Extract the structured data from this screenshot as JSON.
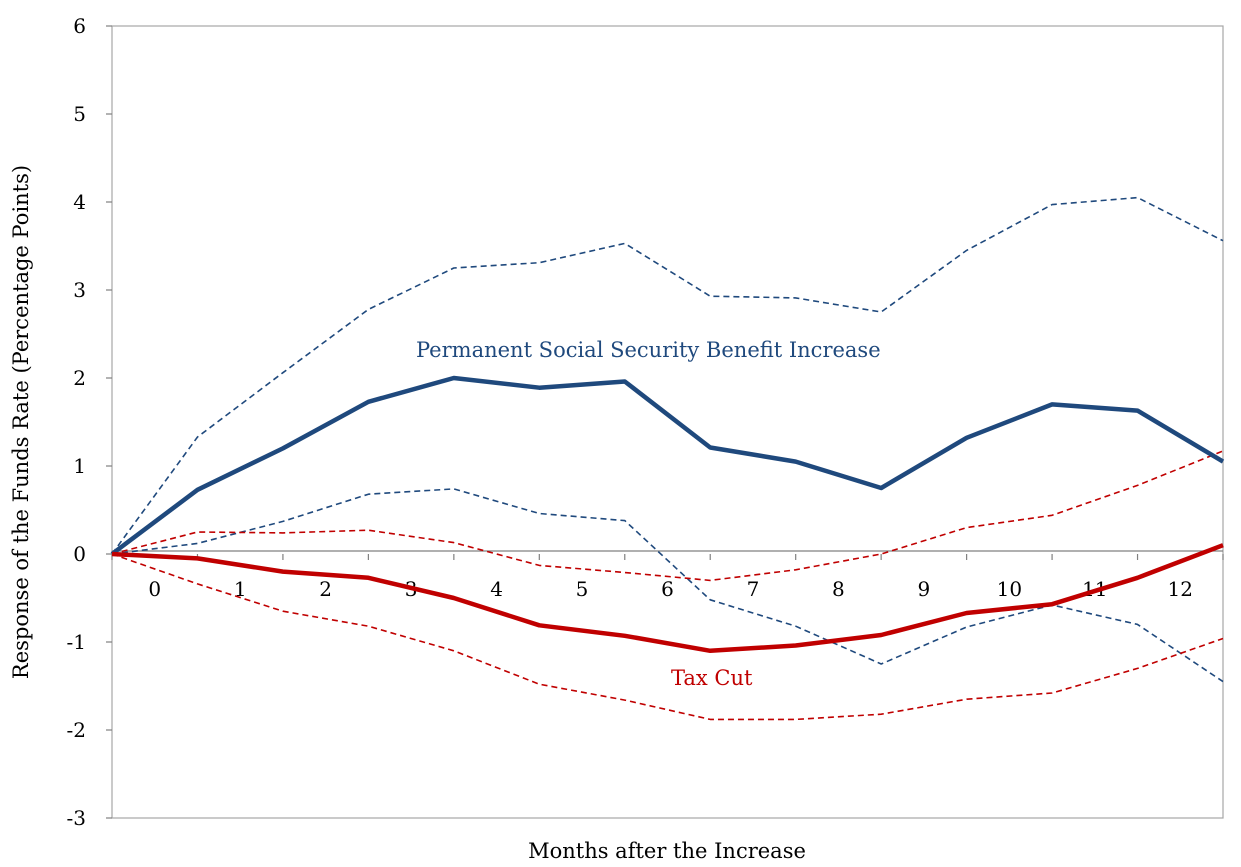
{
  "chart_data": {
    "type": "line",
    "title": "",
    "xlabel": "Months after the Increase",
    "ylabel": "Response of the Funds Rate (Percentage Points)",
    "x_tick_labels": [
      "0",
      "1",
      "2",
      "3",
      "4",
      "5",
      "6",
      "7",
      "8",
      "9",
      "10",
      "11",
      "12"
    ],
    "y_tick_labels": [
      "-3",
      "-2",
      "-1",
      "0",
      "1",
      "2",
      "3",
      "4",
      "5",
      "6"
    ],
    "ylim": [
      -3,
      6
    ],
    "grid": false,
    "legend": "none",
    "annotations": [
      {
        "text": "Permanent Social Security Benefit Increase",
        "color": "#1f497d"
      },
      {
        "text": "Tax Cut",
        "color": "#c00000"
      }
    ],
    "x_steps": [
      0,
      1,
      2,
      3,
      4,
      5,
      6,
      7,
      8,
      9,
      10,
      11,
      12,
      13
    ],
    "series": [
      {
        "style": "solid",
        "color": "#1f497d",
        "values": [
          0,
          0.73,
          1.2,
          1.73,
          2.0,
          1.89,
          1.96,
          1.21,
          1.05,
          0.75,
          1.32,
          1.7,
          1.63,
          1.05
        ]
      },
      {
        "style": "dashed",
        "color": "#1f497d",
        "values": [
          0,
          1.33,
          2.06,
          2.78,
          3.25,
          3.31,
          3.53,
          2.93,
          2.91,
          2.75,
          3.45,
          3.97,
          4.05,
          3.56
        ]
      },
      {
        "style": "dashed",
        "color": "#1f497d",
        "values": [
          0,
          0.12,
          0.37,
          0.68,
          0.74,
          0.46,
          0.38,
          -0.52,
          -0.82,
          -1.25,
          -0.83,
          -0.58,
          -0.8,
          -1.45
        ]
      },
      {
        "style": "solid",
        "color": "#c00000",
        "values": [
          0,
          -0.05,
          -0.2,
          -0.27,
          -0.5,
          -0.81,
          -0.93,
          -1.1,
          -1.04,
          -0.92,
          -0.67,
          -0.57,
          -0.27,
          0.1
        ]
      },
      {
        "style": "dashed",
        "color": "#c00000",
        "values": [
          0,
          0.25,
          0.24,
          0.27,
          0.13,
          -0.13,
          -0.21,
          -0.3,
          -0.18,
          0.0,
          0.3,
          0.44,
          0.78,
          1.17
        ]
      },
      {
        "style": "dashed",
        "color": "#c00000",
        "values": [
          0,
          -0.34,
          -0.65,
          -0.82,
          -1.1,
          -1.48,
          -1.66,
          -1.88,
          -1.88,
          -1.82,
          -1.65,
          -1.58,
          -1.3,
          -0.96
        ]
      }
    ]
  }
}
